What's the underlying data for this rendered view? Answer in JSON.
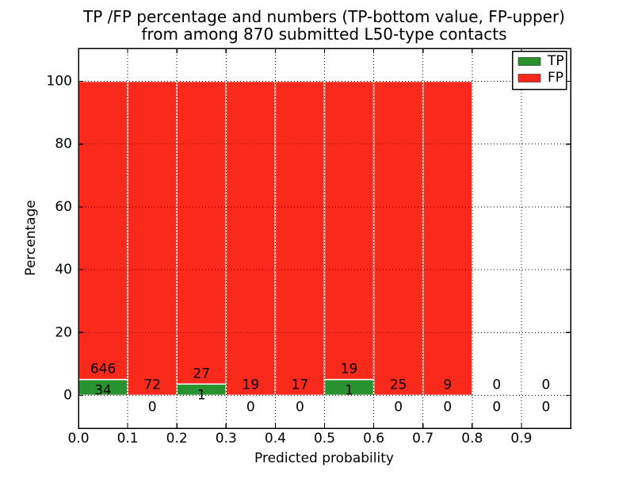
{
  "chart_data": {
    "type": "bar",
    "stacked": true,
    "title_line1": "TP /FP percentage and numbers (TP-bottom value, FP-upper)",
    "title_line2": "from among 870 submitted L50-type contacts",
    "xlabel": "Predicted probability",
    "ylabel": "Percentage",
    "total_contacts": 870,
    "bin_width": 0.1,
    "bins": [
      {
        "x_start": 0.0,
        "tp": 34,
        "fp": 646,
        "tp_pct": 5.0,
        "fp_pct": 95.0
      },
      {
        "x_start": 0.1,
        "tp": 0,
        "fp": 72,
        "tp_pct": 0,
        "fp_pct": 100
      },
      {
        "x_start": 0.2,
        "tp": 1,
        "fp": 27,
        "tp_pct": 3.57,
        "fp_pct": 96.43
      },
      {
        "x_start": 0.3,
        "tp": 0,
        "fp": 19,
        "tp_pct": 0,
        "fp_pct": 100
      },
      {
        "x_start": 0.4,
        "tp": 0,
        "fp": 17,
        "tp_pct": 0,
        "fp_pct": 100
      },
      {
        "x_start": 0.5,
        "tp": 1,
        "fp": 19,
        "tp_pct": 5.0,
        "fp_pct": 95.0
      },
      {
        "x_start": 0.6,
        "tp": 0,
        "fp": 25,
        "tp_pct": 0,
        "fp_pct": 100
      },
      {
        "x_start": 0.7,
        "tp": 0,
        "fp": 9,
        "tp_pct": 0,
        "fp_pct": 100
      },
      {
        "x_start": 0.8,
        "tp": 0,
        "fp": 0,
        "tp_pct": 0,
        "fp_pct": 0
      },
      {
        "x_start": 0.9,
        "tp": 0,
        "fp": 0,
        "tp_pct": 0,
        "fp_pct": 0
      }
    ],
    "series": [
      {
        "name": "TP",
        "color": "#28922e"
      },
      {
        "name": "FP",
        "color": "#f92a1c"
      }
    ],
    "bar_edge_color": "#ffffff",
    "xticks": [
      "0.0",
      "0.1",
      "0.2",
      "0.3",
      "0.4",
      "0.5",
      "0.6",
      "0.7",
      "0.8",
      "0.9"
    ],
    "yticks": [
      0,
      20,
      40,
      60,
      80,
      100
    ],
    "xlim": [
      0.0,
      1.0
    ],
    "ylim": [
      -10.5,
      110.5
    ],
    "grid": "dotted",
    "grid_color": "#000000",
    "legend_position": "upper right"
  }
}
